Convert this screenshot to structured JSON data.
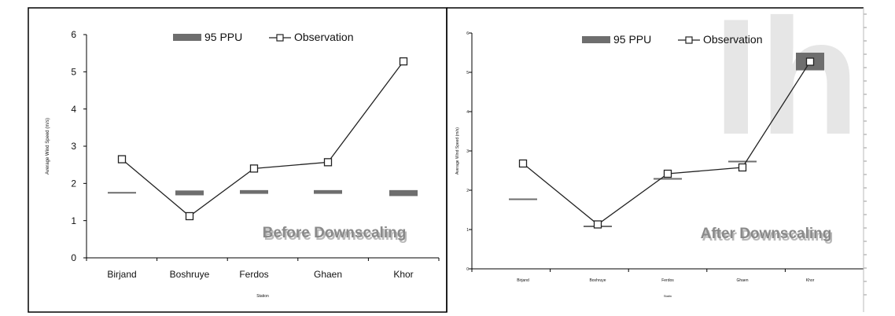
{
  "watermark": {
    "letters": "Ih",
    "color": "#e6e6e6"
  },
  "colors": {
    "ppu": "#6e6e6e",
    "observation": "#222222",
    "axis": "#000000",
    "panel_border": "#000000"
  },
  "chart_data": [
    {
      "type": "line",
      "panel": "left",
      "title": "",
      "xlabel": "Station",
      "ylabel": "Average Wind Speed (m/s)",
      "ylim": [
        0,
        6
      ],
      "yticks": [
        "0",
        "1",
        "2",
        "3",
        "4",
        "5",
        "6"
      ],
      "categories": [
        "Birjand",
        "Boshruye",
        "Ferdos",
        "Ghaen",
        "Khor"
      ],
      "legend": {
        "placement": "top",
        "items": [
          "95 PPU",
          "Observation"
        ]
      },
      "annotation": "Before Downscaling",
      "series": [
        {
          "name": "Observation",
          "kind": "line-square-markers",
          "values": [
            2.65,
            1.12,
            2.4,
            2.57,
            5.28
          ]
        },
        {
          "name": "95 PPU",
          "kind": "band",
          "lower": [
            1.75,
            1.68,
            1.72,
            1.72,
            1.66
          ],
          "upper": [
            1.77,
            1.81,
            1.82,
            1.82,
            1.82
          ]
        }
      ],
      "grid": false
    },
    {
      "type": "line",
      "panel": "right",
      "title": "",
      "xlabel": "Statin",
      "ylabel": "Average Wind Speed (m/s)",
      "ylim": [
        0,
        6
      ],
      "yticks": [
        "0",
        "1",
        "2",
        "3",
        "4",
        "5",
        "6"
      ],
      "categories": [
        "Birjand",
        "Boshruye",
        "Ferdos",
        "Ghaen",
        "Khor"
      ],
      "legend": {
        "placement": "top",
        "items": [
          "95 PPU",
          "Observation"
        ]
      },
      "annotation": "After Downscaling",
      "series": [
        {
          "name": "Observation",
          "kind": "line-square-markers",
          "values": [
            2.68,
            1.13,
            2.42,
            2.58,
            5.27
          ]
        },
        {
          "name": "95 PPU",
          "kind": "band",
          "lower": [
            1.75,
            1.06,
            2.27,
            2.71,
            5.05
          ],
          "upper": [
            1.79,
            1.1,
            2.31,
            2.75,
            5.5
          ]
        }
      ],
      "grid": false
    }
  ]
}
